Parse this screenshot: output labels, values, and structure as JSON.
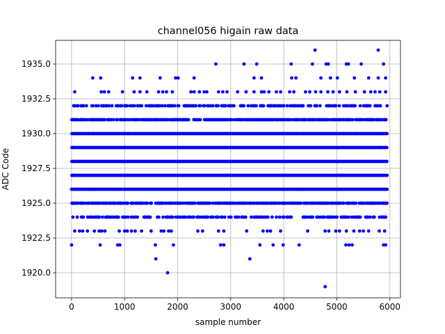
{
  "chart_data": {
    "type": "scatter",
    "title": "channel056 higain raw data",
    "xlabel": "sample number",
    "ylabel": "ADC Code",
    "xlim": [
      -300,
      6200
    ],
    "ylim": [
      1918.2,
      1936.7
    ],
    "xticks": [
      0,
      1000,
      2000,
      3000,
      4000,
      5000,
      6000
    ],
    "xtick_labels": [
      "0",
      "1000",
      "2000",
      "3000",
      "4000",
      "5000",
      "6000"
    ],
    "yticks": [
      1920.0,
      1922.5,
      1925.0,
      1927.5,
      1930.0,
      1932.5,
      1935.0
    ],
    "ytick_labels": [
      "1920.0",
      "1922.5",
      "1925.0",
      "1927.5",
      "1930.0",
      "1932.5",
      "1935.0"
    ],
    "grid": true,
    "marker_color": "#0000ff",
    "sample_range": [
      0,
      5950
    ],
    "series": [
      {
        "levels": [
          {
            "value": 1922,
            "x": [
              0,
              540,
              870,
              910,
              1580,
              1920,
              2810,
              2870,
              3550,
              3800,
              3990,
              4290,
              5170,
              5230,
              5290,
              5880,
              5920
            ]
          },
          {
            "value": 1923,
            "x": [
              60,
              150,
              210,
              300,
              430,
              520,
              570,
              630,
              900,
              1000,
              1050,
              1130,
              1200,
              1320,
              1500,
              1690,
              1740,
              1830,
              1880,
              2380,
              2470,
              2770,
              2870,
              3300,
              3610,
              3690,
              3750,
              3940,
              4450,
              4780,
              4850,
              4980,
              5050,
              5180,
              5320,
              5430,
              5500,
              5600,
              5800,
              5900
            ]
          },
          {
            "value": 1933,
            "x": [
              60,
              560,
              620,
              700,
              960,
              1180,
              1290,
              1420,
              1640,
              1720,
              1790,
              1900,
              2250,
              2310,
              2410,
              2500,
              2550,
              2770,
              2850,
              2930,
              3130,
              3290,
              3440,
              3580,
              3630,
              3720,
              3860,
              3940,
              4110,
              4190,
              4410,
              4490,
              4600,
              4700,
              4830,
              4930,
              5050,
              5190,
              5350,
              5520,
              5640,
              5720,
              5810,
              5920
            ]
          },
          {
            "value": 1934,
            "x": [
              400,
              550,
              1150,
              1290,
              1670,
              1960,
              2010,
              2310,
              3440,
              3580,
              4150,
              4230,
              4700,
              4880,
              5010,
              5330,
              5600,
              5780,
              5920
            ]
          },
          {
            "value": 1935,
            "x": [
              2720,
              3250,
              3490,
              4140,
              4540,
              4800,
              4840,
              5180,
              5220,
              5460,
              5880
            ]
          },
          {
            "value": 1936,
            "x": [
              4590,
              5780
            ]
          },
          {
            "value": 1921,
            "x": [
              1590,
              3360
            ]
          },
          {
            "value": 1920,
            "x": [
              1810
            ]
          },
          {
            "value": 1919,
            "x": [
              4780
            ]
          }
        ],
        "dense_levels": [
          1924,
          1925,
          1926,
          1927,
          1928,
          1929,
          1930,
          1931,
          1932
        ]
      }
    ]
  }
}
